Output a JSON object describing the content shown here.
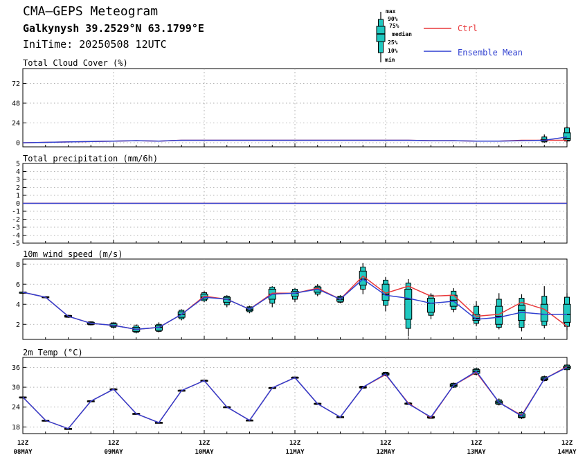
{
  "header": {
    "title": "CMA–GEPS Meteogram",
    "location": "Galkynysh 39.2529°N 63.1799°E",
    "init_time": "IniTime: 20250508 12UTC"
  },
  "legend": {
    "box_labels": [
      "max",
      "90%",
      "75%",
      "median",
      "25%",
      "10%",
      "min"
    ],
    "ctrl_label": "Ctrl",
    "mean_label": "Ensemble Mean",
    "colors": {
      "ctrl": "#e8383b",
      "mean": "#2f3fd0",
      "box": "#20c8c0"
    }
  },
  "chart_data": [
    {
      "type": "boxplot",
      "title": "Total Cloud Cover (%)",
      "x_ticks": [
        "12Z 08MAY",
        "12Z 09MAY",
        "12Z 10MAY",
        "12Z 11MAY",
        "12Z 12MAY",
        "12Z 13MAY",
        "12Z 14MAY"
      ],
      "x_range_hours": [
        0,
        144
      ],
      "ylim": [
        -5,
        90
      ],
      "yticks": [
        "0",
        "24",
        "48",
        "72"
      ],
      "yticks_values": [
        0,
        24,
        48,
        72
      ],
      "grid": true,
      "x_hours": [
        0,
        6,
        12,
        18,
        24,
        30,
        36,
        42,
        48,
        54,
        60,
        66,
        72,
        78,
        84,
        90,
        96,
        102,
        108,
        114,
        120,
        126,
        132,
        138,
        144
      ],
      "mean": [
        0,
        0.5,
        1,
        1.5,
        2,
        2.5,
        2,
        3,
        3,
        3,
        3,
        3,
        3,
        3,
        3,
        3,
        3,
        3,
        2.5,
        2.5,
        2,
        2,
        2.5,
        3,
        7
      ],
      "ctrl": [
        0,
        0.5,
        1,
        1.5,
        2,
        2.5,
        2,
        3,
        3,
        3,
        3,
        3,
        3,
        3,
        3,
        3,
        3,
        3,
        2.5,
        2.5,
        2,
        2,
        3,
        3,
        3
      ],
      "boxes": [
        {
          "x": 138,
          "min": 0,
          "p10": 1,
          "p25": 2,
          "median": 3,
          "p75": 4,
          "p90": 7,
          "max": 10
        },
        {
          "x": 144,
          "min": 0,
          "p10": 2,
          "p25": 3,
          "median": 5,
          "p75": 12,
          "p90": 18,
          "max": 20
        }
      ]
    },
    {
      "type": "line",
      "title": "Total precipitation (mm/6h)",
      "x_range_hours": [
        0,
        144
      ],
      "ylim": [
        -5,
        5
      ],
      "yticks": [
        "5",
        "4",
        "3",
        "2",
        "1",
        "0",
        "-1",
        "-2",
        "-3",
        "-4",
        "-5"
      ],
      "yticks_values": [
        5,
        4,
        3,
        2,
        1,
        0,
        -1,
        -2,
        -3,
        -4,
        -5
      ],
      "grid": true,
      "x_hours": [
        0,
        144
      ],
      "mean": [
        0,
        0
      ],
      "ctrl": [
        0,
        0
      ],
      "boxes": []
    },
    {
      "type": "boxplot",
      "title": "10m wind speed (m/s)",
      "x_range_hours": [
        0,
        144
      ],
      "ylim": [
        0.5,
        8.5
      ],
      "yticks": [
        "2",
        "4",
        "6",
        "8"
      ],
      "yticks_values": [
        2,
        4,
        6,
        8
      ],
      "grid": true,
      "x_hours": [
        0,
        6,
        12,
        18,
        24,
        30,
        36,
        42,
        48,
        54,
        60,
        66,
        72,
        78,
        84,
        90,
        96,
        102,
        108,
        114,
        120,
        126,
        132,
        138,
        144
      ],
      "mean": [
        5.2,
        4.7,
        2.8,
        2.1,
        1.9,
        1.5,
        1.7,
        3.0,
        4.7,
        4.5,
        3.5,
        5.0,
        5.1,
        5.5,
        4.5,
        6.5,
        4.9,
        4.6,
        4.1,
        4.3,
        2.5,
        2.7,
        3.2,
        3.0,
        3.0
      ],
      "ctrl": [
        5.2,
        4.7,
        2.8,
        2.1,
        1.9,
        1.5,
        1.7,
        3.0,
        4.8,
        4.5,
        3.5,
        5.1,
        5.1,
        5.6,
        4.5,
        6.8,
        5.1,
        5.8,
        4.8,
        4.9,
        2.8,
        3.0,
        4.2,
        3.5,
        1.8
      ],
      "boxes": [
        {
          "x": 0,
          "min": 5.2,
          "p10": 5.2,
          "p25": 5.2,
          "median": 5.2,
          "p75": 5.2,
          "p90": 5.2,
          "max": 5.2
        },
        {
          "x": 6,
          "min": 4.6,
          "p10": 4.65,
          "p25": 4.65,
          "median": 4.7,
          "p75": 4.75,
          "p90": 4.75,
          "max": 4.8
        },
        {
          "x": 12,
          "min": 2.65,
          "p10": 2.7,
          "p25": 2.72,
          "median": 2.8,
          "p75": 2.88,
          "p90": 2.9,
          "max": 2.95
        },
        {
          "x": 18,
          "min": 1.9,
          "p10": 1.95,
          "p25": 2.0,
          "median": 2.1,
          "p75": 2.2,
          "p90": 2.25,
          "max": 2.3
        },
        {
          "x": 24,
          "min": 1.6,
          "p10": 1.7,
          "p25": 1.8,
          "median": 1.9,
          "p75": 2.05,
          "p90": 2.15,
          "max": 2.2
        },
        {
          "x": 30,
          "min": 1.1,
          "p10": 1.2,
          "p25": 1.3,
          "median": 1.5,
          "p75": 1.7,
          "p90": 1.85,
          "max": 2.0
        },
        {
          "x": 36,
          "min": 1.2,
          "p10": 1.3,
          "p25": 1.4,
          "median": 1.7,
          "p75": 1.9,
          "p90": 2.0,
          "max": 2.2
        },
        {
          "x": 42,
          "min": 2.4,
          "p10": 2.55,
          "p25": 2.7,
          "median": 3.0,
          "p75": 3.25,
          "p90": 3.4,
          "max": 3.5
        },
        {
          "x": 48,
          "min": 4.2,
          "p10": 4.35,
          "p25": 4.5,
          "median": 4.7,
          "p75": 5.0,
          "p90": 5.15,
          "max": 5.3
        },
        {
          "x": 54,
          "min": 3.7,
          "p10": 3.95,
          "p25": 4.2,
          "median": 4.5,
          "p75": 4.7,
          "p90": 4.8,
          "max": 4.9
        },
        {
          "x": 60,
          "min": 3.1,
          "p10": 3.25,
          "p25": 3.35,
          "median": 3.5,
          "p75": 3.65,
          "p90": 3.75,
          "max": 3.85
        },
        {
          "x": 66,
          "min": 3.7,
          "p10": 4.1,
          "p25": 4.5,
          "median": 5.0,
          "p75": 5.5,
          "p90": 5.7,
          "max": 5.8
        },
        {
          "x": 72,
          "min": 4.2,
          "p10": 4.5,
          "p25": 4.8,
          "median": 5.1,
          "p75": 5.3,
          "p90": 5.5,
          "max": 5.6
        },
        {
          "x": 78,
          "min": 4.8,
          "p10": 5.0,
          "p25": 5.2,
          "median": 5.5,
          "p75": 5.7,
          "p90": 5.8,
          "max": 6.0
        },
        {
          "x": 84,
          "min": 4.1,
          "p10": 4.2,
          "p25": 4.3,
          "median": 4.5,
          "p75": 4.7,
          "p90": 4.8,
          "max": 4.9
        },
        {
          "x": 90,
          "min": 5.0,
          "p10": 5.5,
          "p25": 5.9,
          "median": 6.5,
          "p75": 7.3,
          "p90": 7.7,
          "max": 8.1
        },
        {
          "x": 96,
          "min": 3.3,
          "p10": 3.9,
          "p25": 4.4,
          "median": 5.0,
          "p75": 6.0,
          "p90": 6.4,
          "max": 6.7
        },
        {
          "x": 102,
          "min": 0.8,
          "p10": 1.6,
          "p25": 2.5,
          "median": 4.5,
          "p75": 5.5,
          "p90": 6.1,
          "max": 6.5
        },
        {
          "x": 108,
          "min": 2.5,
          "p10": 2.9,
          "p25": 3.2,
          "median": 4.1,
          "p75": 4.6,
          "p90": 4.9,
          "max": 5.1
        },
        {
          "x": 114,
          "min": 3.2,
          "p10": 3.5,
          "p25": 3.8,
          "median": 4.4,
          "p75": 4.9,
          "p90": 5.3,
          "max": 5.6
        },
        {
          "x": 120,
          "min": 1.8,
          "p10": 2.1,
          "p25": 2.4,
          "median": 2.6,
          "p75": 3.0,
          "p90": 3.8,
          "max": 4.3
        },
        {
          "x": 126,
          "min": 1.5,
          "p10": 1.7,
          "p25": 2.0,
          "median": 2.8,
          "p75": 3.8,
          "p90": 4.5,
          "max": 5.1
        },
        {
          "x": 132,
          "min": 1.3,
          "p10": 1.7,
          "p25": 2.4,
          "median": 3.4,
          "p75": 3.9,
          "p90": 4.6,
          "max": 5.0
        },
        {
          "x": 138,
          "min": 1.6,
          "p10": 1.9,
          "p25": 2.3,
          "median": 3.0,
          "p75": 4.0,
          "p90": 4.8,
          "max": 5.8
        },
        {
          "x": 144,
          "min": 1.4,
          "p10": 1.8,
          "p25": 2.2,
          "median": 3.0,
          "p75": 4.0,
          "p90": 4.7,
          "max": 5.1
        }
      ]
    },
    {
      "type": "boxplot",
      "title": "2m Temp (°C)",
      "x_range_hours": [
        0,
        144
      ],
      "ylim": [
        16,
        39
      ],
      "yticks": [
        "18",
        "24",
        "30",
        "36"
      ],
      "yticks_values": [
        18,
        24,
        30,
        36
      ],
      "grid": true,
      "x_hours": [
        0,
        6,
        12,
        18,
        24,
        30,
        36,
        42,
        48,
        54,
        60,
        66,
        72,
        78,
        84,
        90,
        96,
        102,
        108,
        114,
        120,
        126,
        132,
        138,
        144
      ],
      "mean": [
        27,
        20,
        17.5,
        25.8,
        29.4,
        22,
        19.3,
        29,
        32,
        24,
        20,
        29.8,
        32.9,
        25,
        21,
        30,
        34,
        25,
        21,
        30.6,
        34.8,
        25.4,
        21.3,
        32.5,
        36
      ],
      "ctrl": [
        27,
        20,
        17.5,
        25.8,
        29.4,
        22,
        19.3,
        29,
        32,
        24,
        20,
        29.8,
        32.9,
        25,
        21,
        30,
        33.8,
        25.2,
        20.8,
        30.6,
        34.5,
        25.4,
        21.5,
        32.5,
        36.2
      ],
      "boxes": [
        {
          "x": 0,
          "min": 26.9,
          "p10": 26.95,
          "p25": 26.95,
          "median": 27,
          "p75": 27.05,
          "p90": 27.05,
          "max": 27.1
        },
        {
          "x": 6,
          "min": 19.9,
          "p10": 19.95,
          "p25": 19.95,
          "median": 20,
          "p75": 20.05,
          "p90": 20.05,
          "max": 20.1
        },
        {
          "x": 12,
          "min": 17.4,
          "p10": 17.45,
          "p25": 17.45,
          "median": 17.5,
          "p75": 17.55,
          "p90": 17.55,
          "max": 17.6
        },
        {
          "x": 18,
          "min": 25.6,
          "p10": 25.65,
          "p25": 25.7,
          "median": 25.8,
          "p75": 25.9,
          "p90": 25.95,
          "max": 26.0
        },
        {
          "x": 24,
          "min": 29.2,
          "p10": 29.25,
          "p25": 29.3,
          "median": 29.4,
          "p75": 29.5,
          "p90": 29.55,
          "max": 29.6
        },
        {
          "x": 30,
          "min": 21.8,
          "p10": 21.85,
          "p25": 21.9,
          "median": 22,
          "p75": 22.1,
          "p90": 22.15,
          "max": 22.2
        },
        {
          "x": 36,
          "min": 19.1,
          "p10": 19.15,
          "p25": 19.2,
          "median": 19.3,
          "p75": 19.4,
          "p90": 19.45,
          "max": 19.5
        },
        {
          "x": 42,
          "min": 28.8,
          "p10": 28.85,
          "p25": 28.9,
          "median": 29,
          "p75": 29.1,
          "p90": 29.15,
          "max": 29.2
        },
        {
          "x": 48,
          "min": 31.8,
          "p10": 31.85,
          "p25": 31.9,
          "median": 32,
          "p75": 32.1,
          "p90": 32.15,
          "max": 32.2
        },
        {
          "x": 54,
          "min": 23.8,
          "p10": 23.85,
          "p25": 23.9,
          "median": 24,
          "p75": 24.1,
          "p90": 24.15,
          "max": 24.2
        },
        {
          "x": 60,
          "min": 19.8,
          "p10": 19.85,
          "p25": 19.9,
          "median": 20,
          "p75": 20.1,
          "p90": 20.15,
          "max": 20.2
        },
        {
          "x": 66,
          "min": 29.6,
          "p10": 29.65,
          "p25": 29.7,
          "median": 29.8,
          "p75": 29.9,
          "p90": 29.95,
          "max": 30.0
        },
        {
          "x": 72,
          "min": 32.6,
          "p10": 32.7,
          "p25": 32.75,
          "median": 32.9,
          "p75": 33.05,
          "p90": 33.1,
          "max": 33.2
        },
        {
          "x": 78,
          "min": 24.7,
          "p10": 24.8,
          "p25": 24.85,
          "median": 25,
          "p75": 25.15,
          "p90": 25.2,
          "max": 25.3
        },
        {
          "x": 84,
          "min": 20.8,
          "p10": 20.85,
          "p25": 20.9,
          "median": 21,
          "p75": 21.1,
          "p90": 21.15,
          "max": 21.2
        },
        {
          "x": 90,
          "min": 29.6,
          "p10": 29.7,
          "p25": 29.8,
          "median": 30,
          "p75": 30.2,
          "p90": 30.3,
          "max": 30.4
        },
        {
          "x": 96,
          "min": 33.3,
          "p10": 33.5,
          "p25": 33.7,
          "median": 34,
          "p75": 34.3,
          "p90": 34.5,
          "max": 34.6
        },
        {
          "x": 102,
          "min": 24.7,
          "p10": 24.8,
          "p25": 24.9,
          "median": 25,
          "p75": 25.2,
          "p90": 25.3,
          "max": 25.4
        },
        {
          "x": 108,
          "min": 20.5,
          "p10": 20.6,
          "p25": 20.7,
          "median": 20.9,
          "p75": 21.1,
          "p90": 21.2,
          "max": 21.3
        },
        {
          "x": 114,
          "min": 29.8,
          "p10": 30.0,
          "p25": 30.2,
          "median": 30.6,
          "p75": 31.0,
          "p90": 31.2,
          "max": 31.4
        },
        {
          "x": 120,
          "min": 33.6,
          "p10": 33.9,
          "p25": 34.2,
          "median": 34.8,
          "p75": 35.3,
          "p90": 35.6,
          "max": 35.9
        },
        {
          "x": 126,
          "min": 24.5,
          "p10": 24.8,
          "p25": 25.0,
          "median": 25.4,
          "p75": 25.8,
          "p90": 26.2,
          "max": 26.6
        },
        {
          "x": 132,
          "min": 20.4,
          "p10": 20.7,
          "p25": 20.9,
          "median": 21.3,
          "p75": 21.9,
          "p90": 22.4,
          "max": 22.8
        },
        {
          "x": 138,
          "min": 31.8,
          "p10": 32.0,
          "p25": 32.2,
          "median": 32.5,
          "p75": 32.9,
          "p90": 33.2,
          "max": 33.5
        },
        {
          "x": 144,
          "min": 35.0,
          "p10": 35.3,
          "p25": 35.6,
          "median": 36,
          "p75": 36.4,
          "p90": 36.7,
          "max": 37.0
        }
      ]
    }
  ]
}
